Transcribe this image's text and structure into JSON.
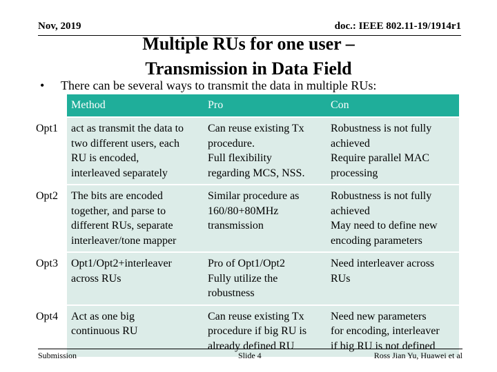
{
  "header": {
    "date": "Nov, 2019",
    "doc_id": "doc.: IEEE 802.11-19/1914r1"
  },
  "title": {
    "line1": "Multiple RUs for one user –",
    "line2": "Transmission in Data Field"
  },
  "bullet": {
    "symbol": "•",
    "text": "There can be several ways to transmit the data in multiple RUs:"
  },
  "table": {
    "headers": {
      "blank": "",
      "method": "Method",
      "pro": "Pro",
      "con": "Con"
    },
    "rows": [
      {
        "opt": "Opt1",
        "method": [
          "act as transmit the data to",
          "two different users, each",
          "RU is encoded,",
          "interleaved separately"
        ],
        "pro": [
          "Can reuse existing Tx",
          "procedure.",
          "Full flexibility",
          "regarding MCS, NSS."
        ],
        "con": [
          "Robustness is not fully",
          "achieved",
          "Require parallel MAC",
          "processing"
        ]
      },
      {
        "opt": "Opt2",
        "method": [
          "The bits are encoded",
          "together, and parse to",
          "different RUs, separate",
          "interleaver/tone mapper"
        ],
        "pro": [
          "Similar procedure as",
          "160/80+80MHz",
          "transmission"
        ],
        "con": [
          "Robustness is not fully",
          "achieved",
          "May need to define new",
          "encoding parameters"
        ]
      },
      {
        "opt": "Opt3",
        "method": [
          "Opt1/Opt2+interleaver",
          "across RUs"
        ],
        "pro": [
          "Pro of Opt1/Opt2",
          "Fully utilize the",
          "robustness"
        ],
        "con": [
          "Need interleaver across",
          "RUs"
        ]
      },
      {
        "opt": "Opt4",
        "method": [
          "Act as one big",
          "continuous RU"
        ],
        "pro": [
          "Can reuse existing Tx",
          "procedure if big RU is",
          "already defined RU"
        ],
        "con": [
          "Need new parameters",
          "for encoding, interleaver",
          "if big RU is not defined"
        ]
      }
    ]
  },
  "footer": {
    "left": "Submission",
    "center": "Slide 4",
    "right": "Ross Jian Yu, Huawei et al"
  }
}
